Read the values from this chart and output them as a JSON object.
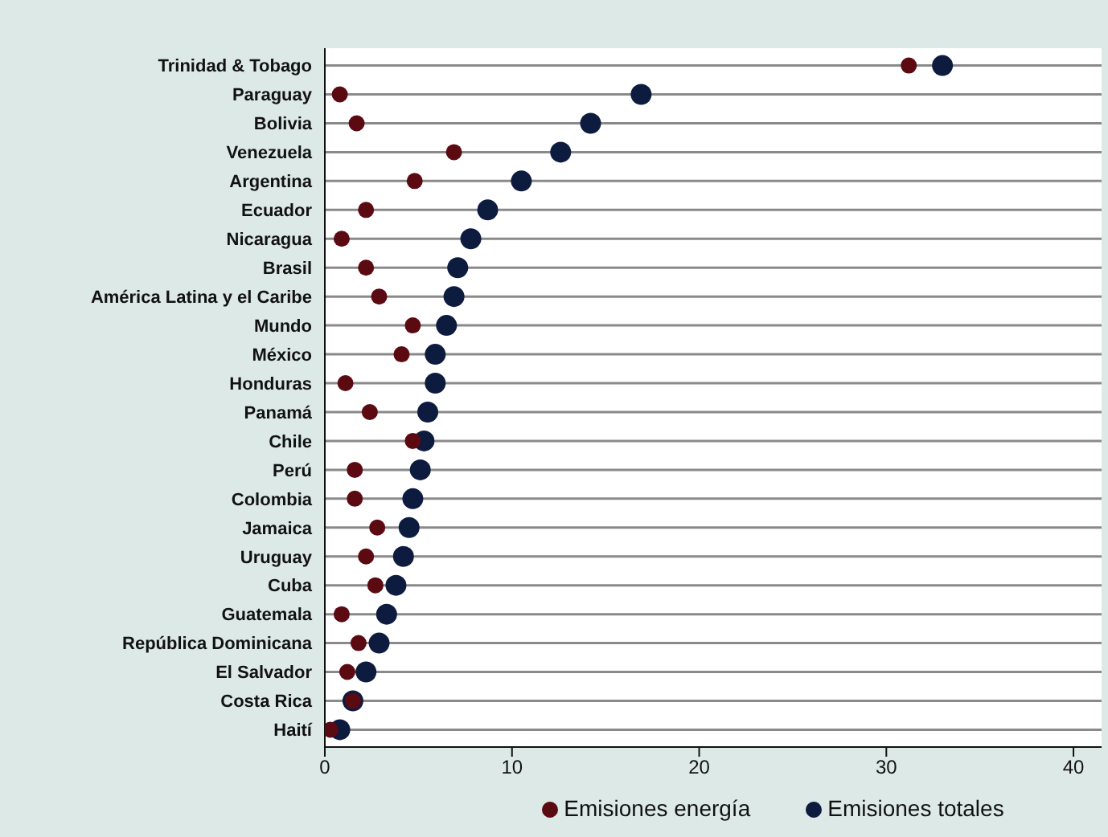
{
  "chart_data": {
    "type": "scatter",
    "orientation": "horizontal",
    "categories": [
      "Trinidad & Tobago",
      "Paraguay",
      "Bolivia",
      "Venezuela",
      "Argentina",
      "Ecuador",
      "Nicaragua",
      "Brasil",
      "América Latina y el Caribe",
      "Mundo",
      "México",
      "Honduras",
      "Panamá",
      "Chile",
      "Perú",
      "Colombia",
      "Jamaica",
      "Uruguay",
      "Cuba",
      "Guatemala",
      "República Dominicana",
      "El Salvador",
      "Costa Rica",
      "Haití"
    ],
    "series": [
      {
        "name": "Emisiones totales",
        "color": "#0d1b3e",
        "values": [
          33,
          16.9,
          14.2,
          12.6,
          10.5,
          8.7,
          7.8,
          7.1,
          6.9,
          6.5,
          5.9,
          5.9,
          5.5,
          5.3,
          5.1,
          4.7,
          4.5,
          4.2,
          3.8,
          3.3,
          2.9,
          2.2,
          1.5,
          0.8
        ]
      },
      {
        "name": "Emisiones energía",
        "color": "#5c0a12",
        "values": [
          31.2,
          0.8,
          1.7,
          6.9,
          4.8,
          2.2,
          0.9,
          2.2,
          2.9,
          4.7,
          4.1,
          1.1,
          2.4,
          4.7,
          1.6,
          1.6,
          2.8,
          2.2,
          2.7,
          0.9,
          1.8,
          1.2,
          1.5,
          0.3
        ]
      }
    ],
    "xlim": [
      0,
      41.5
    ],
    "xticks": [
      0,
      10,
      20,
      30,
      40
    ],
    "grid": "y",
    "legend": "bottom",
    "marker": "circle"
  }
}
